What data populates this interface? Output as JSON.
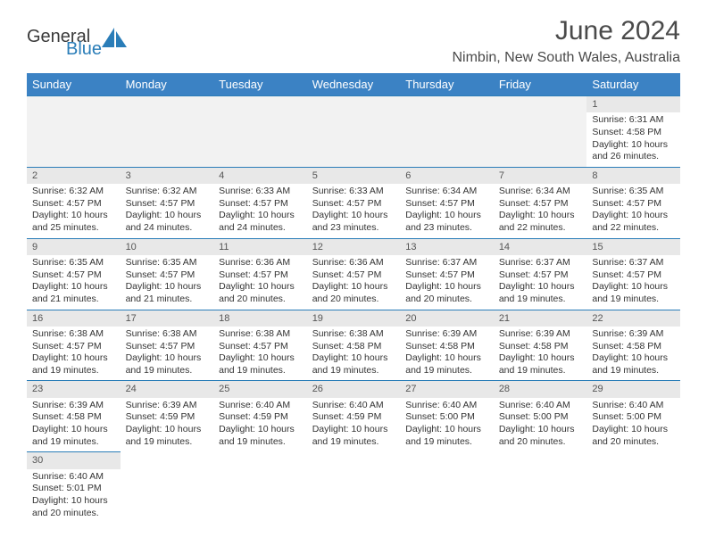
{
  "logo": {
    "general": "General",
    "blue": "Blue",
    "icon_color": "#2a7db8"
  },
  "title": "June 2024",
  "location": "Nimbin, New South Wales, Australia",
  "header_bg": "#3b82c4",
  "daynum_bg": "#e8e8e8",
  "border_color": "#2a7db8",
  "weekdays": [
    "Sunday",
    "Monday",
    "Tuesday",
    "Wednesday",
    "Thursday",
    "Friday",
    "Saturday"
  ],
  "weeks": [
    [
      null,
      null,
      null,
      null,
      null,
      null,
      {
        "n": "1",
        "sr": "Sunrise: 6:31 AM",
        "ss": "Sunset: 4:58 PM",
        "d1": "Daylight: 10 hours",
        "d2": "and 26 minutes."
      }
    ],
    [
      {
        "n": "2",
        "sr": "Sunrise: 6:32 AM",
        "ss": "Sunset: 4:57 PM",
        "d1": "Daylight: 10 hours",
        "d2": "and 25 minutes."
      },
      {
        "n": "3",
        "sr": "Sunrise: 6:32 AM",
        "ss": "Sunset: 4:57 PM",
        "d1": "Daylight: 10 hours",
        "d2": "and 24 minutes."
      },
      {
        "n": "4",
        "sr": "Sunrise: 6:33 AM",
        "ss": "Sunset: 4:57 PM",
        "d1": "Daylight: 10 hours",
        "d2": "and 24 minutes."
      },
      {
        "n": "5",
        "sr": "Sunrise: 6:33 AM",
        "ss": "Sunset: 4:57 PM",
        "d1": "Daylight: 10 hours",
        "d2": "and 23 minutes."
      },
      {
        "n": "6",
        "sr": "Sunrise: 6:34 AM",
        "ss": "Sunset: 4:57 PM",
        "d1": "Daylight: 10 hours",
        "d2": "and 23 minutes."
      },
      {
        "n": "7",
        "sr": "Sunrise: 6:34 AM",
        "ss": "Sunset: 4:57 PM",
        "d1": "Daylight: 10 hours",
        "d2": "and 22 minutes."
      },
      {
        "n": "8",
        "sr": "Sunrise: 6:35 AM",
        "ss": "Sunset: 4:57 PM",
        "d1": "Daylight: 10 hours",
        "d2": "and 22 minutes."
      }
    ],
    [
      {
        "n": "9",
        "sr": "Sunrise: 6:35 AM",
        "ss": "Sunset: 4:57 PM",
        "d1": "Daylight: 10 hours",
        "d2": "and 21 minutes."
      },
      {
        "n": "10",
        "sr": "Sunrise: 6:35 AM",
        "ss": "Sunset: 4:57 PM",
        "d1": "Daylight: 10 hours",
        "d2": "and 21 minutes."
      },
      {
        "n": "11",
        "sr": "Sunrise: 6:36 AM",
        "ss": "Sunset: 4:57 PM",
        "d1": "Daylight: 10 hours",
        "d2": "and 20 minutes."
      },
      {
        "n": "12",
        "sr": "Sunrise: 6:36 AM",
        "ss": "Sunset: 4:57 PM",
        "d1": "Daylight: 10 hours",
        "d2": "and 20 minutes."
      },
      {
        "n": "13",
        "sr": "Sunrise: 6:37 AM",
        "ss": "Sunset: 4:57 PM",
        "d1": "Daylight: 10 hours",
        "d2": "and 20 minutes."
      },
      {
        "n": "14",
        "sr": "Sunrise: 6:37 AM",
        "ss": "Sunset: 4:57 PM",
        "d1": "Daylight: 10 hours",
        "d2": "and 19 minutes."
      },
      {
        "n": "15",
        "sr": "Sunrise: 6:37 AM",
        "ss": "Sunset: 4:57 PM",
        "d1": "Daylight: 10 hours",
        "d2": "and 19 minutes."
      }
    ],
    [
      {
        "n": "16",
        "sr": "Sunrise: 6:38 AM",
        "ss": "Sunset: 4:57 PM",
        "d1": "Daylight: 10 hours",
        "d2": "and 19 minutes."
      },
      {
        "n": "17",
        "sr": "Sunrise: 6:38 AM",
        "ss": "Sunset: 4:57 PM",
        "d1": "Daylight: 10 hours",
        "d2": "and 19 minutes."
      },
      {
        "n": "18",
        "sr": "Sunrise: 6:38 AM",
        "ss": "Sunset: 4:57 PM",
        "d1": "Daylight: 10 hours",
        "d2": "and 19 minutes."
      },
      {
        "n": "19",
        "sr": "Sunrise: 6:38 AM",
        "ss": "Sunset: 4:58 PM",
        "d1": "Daylight: 10 hours",
        "d2": "and 19 minutes."
      },
      {
        "n": "20",
        "sr": "Sunrise: 6:39 AM",
        "ss": "Sunset: 4:58 PM",
        "d1": "Daylight: 10 hours",
        "d2": "and 19 minutes."
      },
      {
        "n": "21",
        "sr": "Sunrise: 6:39 AM",
        "ss": "Sunset: 4:58 PM",
        "d1": "Daylight: 10 hours",
        "d2": "and 19 minutes."
      },
      {
        "n": "22",
        "sr": "Sunrise: 6:39 AM",
        "ss": "Sunset: 4:58 PM",
        "d1": "Daylight: 10 hours",
        "d2": "and 19 minutes."
      }
    ],
    [
      {
        "n": "23",
        "sr": "Sunrise: 6:39 AM",
        "ss": "Sunset: 4:58 PM",
        "d1": "Daylight: 10 hours",
        "d2": "and 19 minutes."
      },
      {
        "n": "24",
        "sr": "Sunrise: 6:39 AM",
        "ss": "Sunset: 4:59 PM",
        "d1": "Daylight: 10 hours",
        "d2": "and 19 minutes."
      },
      {
        "n": "25",
        "sr": "Sunrise: 6:40 AM",
        "ss": "Sunset: 4:59 PM",
        "d1": "Daylight: 10 hours",
        "d2": "and 19 minutes."
      },
      {
        "n": "26",
        "sr": "Sunrise: 6:40 AM",
        "ss": "Sunset: 4:59 PM",
        "d1": "Daylight: 10 hours",
        "d2": "and 19 minutes."
      },
      {
        "n": "27",
        "sr": "Sunrise: 6:40 AM",
        "ss": "Sunset: 5:00 PM",
        "d1": "Daylight: 10 hours",
        "d2": "and 19 minutes."
      },
      {
        "n": "28",
        "sr": "Sunrise: 6:40 AM",
        "ss": "Sunset: 5:00 PM",
        "d1": "Daylight: 10 hours",
        "d2": "and 20 minutes."
      },
      {
        "n": "29",
        "sr": "Sunrise: 6:40 AM",
        "ss": "Sunset: 5:00 PM",
        "d1": "Daylight: 10 hours",
        "d2": "and 20 minutes."
      }
    ],
    [
      {
        "n": "30",
        "sr": "Sunrise: 6:40 AM",
        "ss": "Sunset: 5:01 PM",
        "d1": "Daylight: 10 hours",
        "d2": "and 20 minutes."
      },
      null,
      null,
      null,
      null,
      null,
      null
    ]
  ]
}
